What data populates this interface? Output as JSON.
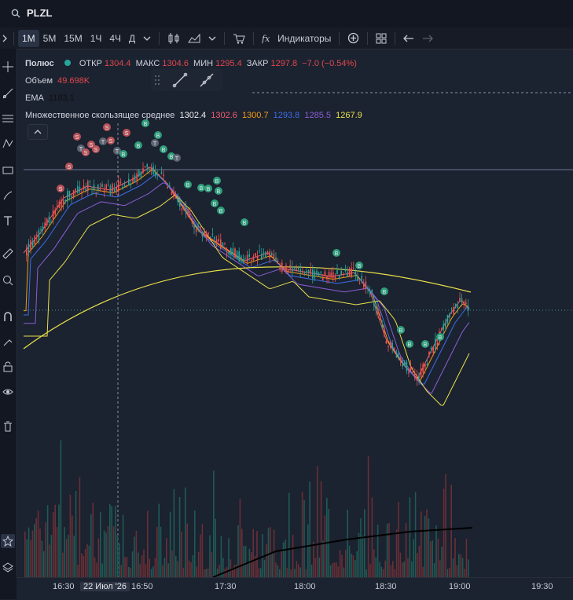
{
  "symbol": {
    "ticker": "PLZL"
  },
  "toolbar": {
    "timeframes": [
      "1М",
      "5М",
      "15М",
      "1Ч",
      "4Ч",
      "Д"
    ],
    "active_timeframe": "1М",
    "indicators_label": "Индикаторы"
  },
  "legend": {
    "name": "Полюс",
    "open_label": "ОТКР",
    "open_value": "1304.4",
    "high_label": "МАКС",
    "high_value": "1304.6",
    "low_label": "МИН",
    "low_value": "1295.4",
    "close_label": "ЗАКР",
    "close_value": "1297.8",
    "change": "−7.0 (−0.54%)",
    "volume_label": "Объем",
    "volume_value": "49.698K",
    "ema_label": "EMA",
    "ema_value": "1183.1",
    "mma_label": "Множественное скользящее среднее",
    "mma_values": [
      "1302.4",
      "1302.6",
      "1300.7",
      "1293.8",
      "1285.5",
      "1267.9"
    ]
  },
  "colors": {
    "bg": "#1b2230",
    "up": "#26a69a",
    "down": "#ef5350",
    "ma": [
      "#f0f0f0",
      "#f05d6b",
      "#f39c12",
      "#3d6ee8",
      "#8b5fd6",
      "#e8e04a"
    ],
    "buy": "#2e9e7b",
    "sell": "#b9535a"
  },
  "xaxis": {
    "ticks": [
      "16:30",
      "16:50",
      "17:30",
      "18:00",
      "18:30",
      "19:00",
      "19:30"
    ],
    "crosshair_label": "22 Июл '26"
  },
  "markers": {
    "buy": "B",
    "sell": "S",
    "trade": "T"
  },
  "icons": [
    "search-icon",
    "chevron-down-icon",
    "candles-icon",
    "area-chart-icon",
    "cart-icon",
    "fx-icon",
    "plus-circle-icon",
    "layout-icon",
    "undo-icon",
    "redo-icon",
    "crosshair-icon",
    "trend-line-icon",
    "fib-icon",
    "pattern-icon",
    "text-icon",
    "ruler-icon",
    "zoom-icon",
    "magnet-icon",
    "lock-icon",
    "eye-icon",
    "trash-icon",
    "star-icon",
    "layers-icon"
  ]
}
